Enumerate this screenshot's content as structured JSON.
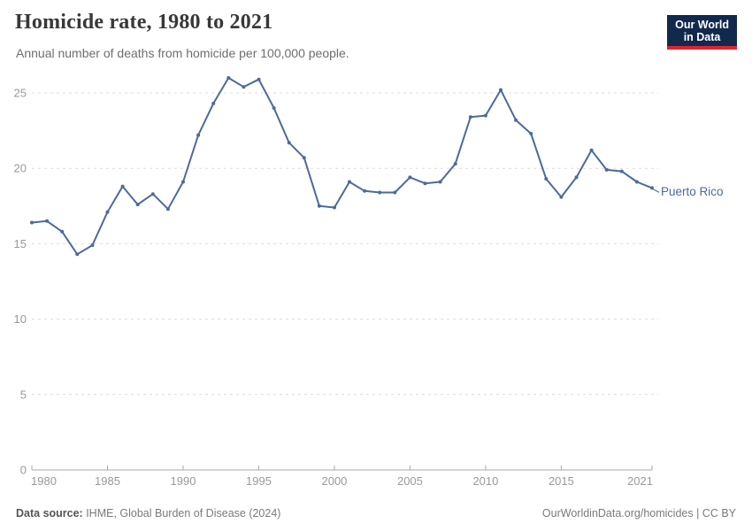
{
  "header": {
    "title": "Homicide rate, 1980 to 2021",
    "subtitle": "Annual number of deaths from homicide per 100,000 people.",
    "logo": {
      "line1": "Our World",
      "line2": "in Data"
    }
  },
  "chart_data": {
    "type": "line",
    "title": "Homicide rate, 1980 to 2021",
    "xlabel": "",
    "ylabel": "Deaths from homicide per 100,000 people",
    "ylim": [
      0,
      26.5
    ],
    "yticks": [
      0,
      5,
      10,
      15,
      20,
      25
    ],
    "xticks": [
      1980,
      1985,
      1990,
      1995,
      2000,
      2005,
      2010,
      2015,
      2021
    ],
    "grid": "horizontal-dashed",
    "legend_position": "end-of-line-label",
    "series": [
      {
        "name": "Puerto Rico",
        "x": [
          1980,
          1981,
          1982,
          1983,
          1984,
          1985,
          1986,
          1987,
          1988,
          1989,
          1990,
          1991,
          1992,
          1993,
          1994,
          1995,
          1996,
          1997,
          1998,
          1999,
          2000,
          2001,
          2002,
          2003,
          2004,
          2005,
          2006,
          2007,
          2008,
          2009,
          2010,
          2011,
          2012,
          2013,
          2014,
          2015,
          2016,
          2017,
          2018,
          2019,
          2020,
          2021
        ],
        "values": [
          16.4,
          16.5,
          15.8,
          14.3,
          14.9,
          17.1,
          18.8,
          17.6,
          18.3,
          17.3,
          19.1,
          22.2,
          24.3,
          26.0,
          25.4,
          25.9,
          24.0,
          21.7,
          20.7,
          17.5,
          17.4,
          19.1,
          18.5,
          18.4,
          18.4,
          19.4,
          19.0,
          19.1,
          20.3,
          23.4,
          23.5,
          25.2,
          23.2,
          22.3,
          19.3,
          18.1,
          19.4,
          21.2,
          19.9,
          19.8,
          19.1,
          18.7
        ]
      }
    ]
  },
  "footer": {
    "datasource_label": "Data source:",
    "datasource_text": " IHME, Global Burden of Disease (2024)",
    "credit": "OurWorldinData.org/homicides | CC BY"
  },
  "colors": {
    "series": "#4C6A9C",
    "title": "#383838",
    "subtitle": "#6e6e6e",
    "axis_text": "#999999",
    "gridline": "#dcdcdc",
    "axis_line": "#a8a8a8",
    "logo_background": "#12294d",
    "logo_red": "#e0232c",
    "footer_text": "#7a7a7a"
  }
}
